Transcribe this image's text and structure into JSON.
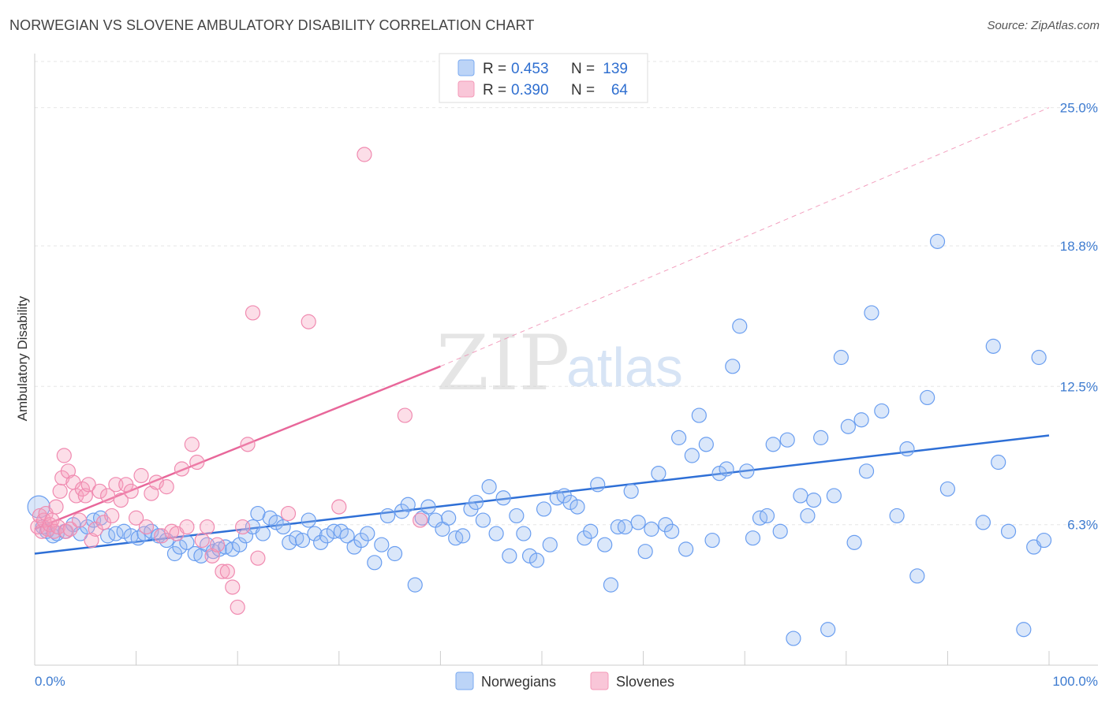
{
  "header": {
    "title": "NORWEGIAN VS SLOVENE AMBULATORY DISABILITY CORRELATION CHART",
    "source": "Source: ZipAtlas.com"
  },
  "watermark": {
    "zip": "ZIP",
    "atlas": "atlas"
  },
  "legend": {
    "norwegians": {
      "r_label": "R =",
      "r_value": "0.453",
      "n_label": "N =",
      "n_value": "139",
      "color": "#7aaaf0"
    },
    "slovenes": {
      "r_label": "R =",
      "r_value": "0.390",
      "n_label": "N =",
      "n_value": "64",
      "color": "#f49ab8"
    }
  },
  "bottom_legend": {
    "norwegians": "Norwegians",
    "slovenes": "Slovenes"
  },
  "chart_data": {
    "type": "scatter",
    "title": "NORWEGIAN VS SLOVENE AMBULATORY DISABILITY CORRELATION CHART",
    "xlabel": "",
    "ylabel": "Ambulatory Disability",
    "xlim": [
      0,
      100
    ],
    "ylim": [
      0,
      27
    ],
    "x_tick_labels": [
      "0.0%",
      "100.0%"
    ],
    "y_ticks": [
      6.3,
      12.5,
      18.8,
      25.0
    ],
    "y_tick_labels": [
      "6.3%",
      "12.5%",
      "18.8%",
      "25.0%"
    ],
    "grid": true,
    "legend_position": "top-center",
    "series": [
      {
        "name": "Norwegians",
        "color": "#6a9ef0",
        "trend": {
          "x": [
            0,
            100
          ],
          "y": [
            5.0,
            10.3
          ]
        },
        "points": [
          [
            0.4,
            7.1
          ],
          [
            0.8,
            6.2
          ],
          [
            1.2,
            6.0
          ],
          [
            1.8,
            5.8
          ],
          [
            2.2,
            5.9
          ],
          [
            3.0,
            6.0
          ],
          [
            3.8,
            6.3
          ],
          [
            4.5,
            5.9
          ],
          [
            5.2,
            6.2
          ],
          [
            5.8,
            6.5
          ],
          [
            6.5,
            6.6
          ],
          [
            7.2,
            5.8
          ],
          [
            8.0,
            5.9
          ],
          [
            8.8,
            6.0
          ],
          [
            9.5,
            5.8
          ],
          [
            10.2,
            5.7
          ],
          [
            10.8,
            5.9
          ],
          [
            11.5,
            6.0
          ],
          [
            12.2,
            5.8
          ],
          [
            13.0,
            5.6
          ],
          [
            13.8,
            5.0
          ],
          [
            14.3,
            5.3
          ],
          [
            15.0,
            5.5
          ],
          [
            15.8,
            5.0
          ],
          [
            16.4,
            4.9
          ],
          [
            17.0,
            5.4
          ],
          [
            17.6,
            5.1
          ],
          [
            18.2,
            5.2
          ],
          [
            18.8,
            5.3
          ],
          [
            19.5,
            5.2
          ],
          [
            20.2,
            5.4
          ],
          [
            20.8,
            5.8
          ],
          [
            21.5,
            6.2
          ],
          [
            22.0,
            6.8
          ],
          [
            22.5,
            5.9
          ],
          [
            23.2,
            6.6
          ],
          [
            23.8,
            6.4
          ],
          [
            24.5,
            6.2
          ],
          [
            25.1,
            5.5
          ],
          [
            25.8,
            5.7
          ],
          [
            26.4,
            5.6
          ],
          [
            27.0,
            6.5
          ],
          [
            27.6,
            5.9
          ],
          [
            28.2,
            5.5
          ],
          [
            28.8,
            5.8
          ],
          [
            29.5,
            6.0
          ],
          [
            30.2,
            6.0
          ],
          [
            30.8,
            5.8
          ],
          [
            31.5,
            5.3
          ],
          [
            32.2,
            5.6
          ],
          [
            32.8,
            5.9
          ],
          [
            33.5,
            4.6
          ],
          [
            34.2,
            5.4
          ],
          [
            34.8,
            6.7
          ],
          [
            35.5,
            5.0
          ],
          [
            36.2,
            6.9
          ],
          [
            36.8,
            7.2
          ],
          [
            37.5,
            3.6
          ],
          [
            38.2,
            6.6
          ],
          [
            38.8,
            7.1
          ],
          [
            39.5,
            6.5
          ],
          [
            40.2,
            6.1
          ],
          [
            40.8,
            6.6
          ],
          [
            41.5,
            5.7
          ],
          [
            42.2,
            5.8
          ],
          [
            43.0,
            7.0
          ],
          [
            43.5,
            7.3
          ],
          [
            44.2,
            6.5
          ],
          [
            44.8,
            8.0
          ],
          [
            45.5,
            5.9
          ],
          [
            46.2,
            7.5
          ],
          [
            46.8,
            4.9
          ],
          [
            47.5,
            6.7
          ],
          [
            48.2,
            5.9
          ],
          [
            48.8,
            4.9
          ],
          [
            49.5,
            4.7
          ],
          [
            50.2,
            7.0
          ],
          [
            50.8,
            5.4
          ],
          [
            51.5,
            7.5
          ],
          [
            52.2,
            7.6
          ],
          [
            52.8,
            7.3
          ],
          [
            53.5,
            7.1
          ],
          [
            54.2,
            5.7
          ],
          [
            54.8,
            6.0
          ],
          [
            55.5,
            8.1
          ],
          [
            56.2,
            5.4
          ],
          [
            56.8,
            3.6
          ],
          [
            57.5,
            6.2
          ],
          [
            58.2,
            6.2
          ],
          [
            58.8,
            7.8
          ],
          [
            59.5,
            6.4
          ],
          [
            60.2,
            5.1
          ],
          [
            60.8,
            6.1
          ],
          [
            61.5,
            8.6
          ],
          [
            62.2,
            6.3
          ],
          [
            62.8,
            6.0
          ],
          [
            63.5,
            10.2
          ],
          [
            64.2,
            5.2
          ],
          [
            64.8,
            9.4
          ],
          [
            65.5,
            11.2
          ],
          [
            66.2,
            9.9
          ],
          [
            66.8,
            5.6
          ],
          [
            67.5,
            8.6
          ],
          [
            68.2,
            8.8
          ],
          [
            68.8,
            13.4
          ],
          [
            69.5,
            15.2
          ],
          [
            70.2,
            8.7
          ],
          [
            70.8,
            5.7
          ],
          [
            71.5,
            6.6
          ],
          [
            72.2,
            6.7
          ],
          [
            72.8,
            9.9
          ],
          [
            73.5,
            6.0
          ],
          [
            74.2,
            10.1
          ],
          [
            74.8,
            1.2
          ],
          [
            75.5,
            7.6
          ],
          [
            76.2,
            6.7
          ],
          [
            76.8,
            7.4
          ],
          [
            77.5,
            10.2
          ],
          [
            78.2,
            1.6
          ],
          [
            78.8,
            7.6
          ],
          [
            79.5,
            13.8
          ],
          [
            80.2,
            10.7
          ],
          [
            80.8,
            5.5
          ],
          [
            81.5,
            11.0
          ],
          [
            82.0,
            8.7
          ],
          [
            82.5,
            15.8
          ],
          [
            83.5,
            11.4
          ],
          [
            85.0,
            6.7
          ],
          [
            86.0,
            9.7
          ],
          [
            87.0,
            4.0
          ],
          [
            88.0,
            12.0
          ],
          [
            89.0,
            19.0
          ],
          [
            90.0,
            7.9
          ],
          [
            93.5,
            6.4
          ],
          [
            94.5,
            14.3
          ],
          [
            95.0,
            9.1
          ],
          [
            96.0,
            6.0
          ],
          [
            97.5,
            1.6
          ],
          [
            98.5,
            5.3
          ],
          [
            99.0,
            13.8
          ],
          [
            99.5,
            5.6
          ]
        ]
      },
      {
        "name": "Slovenes",
        "color": "#f08ab0",
        "trend": {
          "x": [
            0,
            40
          ],
          "y": [
            6.1,
            13.4
          ]
        },
        "trend_extended": {
          "x": [
            40,
            100
          ],
          "y": [
            13.4,
            25.0
          ]
        },
        "points": [
          [
            0.3,
            6.2
          ],
          [
            0.5,
            6.7
          ],
          [
            0.7,
            6.0
          ],
          [
            0.9,
            6.5
          ],
          [
            1.1,
            6.8
          ],
          [
            1.3,
            6.1
          ],
          [
            1.5,
            6.3
          ],
          [
            1.7,
            6.5
          ],
          [
            1.9,
            6.0
          ],
          [
            2.1,
            7.1
          ],
          [
            2.3,
            6.2
          ],
          [
            2.5,
            7.8
          ],
          [
            2.7,
            8.4
          ],
          [
            2.9,
            9.4
          ],
          [
            3.1,
            6.0
          ],
          [
            3.3,
            8.7
          ],
          [
            3.5,
            6.1
          ],
          [
            3.8,
            8.2
          ],
          [
            4.1,
            7.6
          ],
          [
            4.4,
            6.5
          ],
          [
            4.7,
            7.9
          ],
          [
            5.0,
            7.6
          ],
          [
            5.3,
            8.1
          ],
          [
            5.6,
            5.6
          ],
          [
            6.0,
            6.1
          ],
          [
            6.4,
            7.8
          ],
          [
            6.8,
            6.4
          ],
          [
            7.2,
            7.6
          ],
          [
            7.6,
            6.7
          ],
          [
            8.0,
            8.1
          ],
          [
            8.5,
            7.4
          ],
          [
            9.0,
            8.1
          ],
          [
            9.5,
            7.8
          ],
          [
            10.0,
            6.6
          ],
          [
            10.5,
            8.5
          ],
          [
            11.0,
            6.2
          ],
          [
            11.5,
            7.7
          ],
          [
            12.0,
            8.2
          ],
          [
            12.5,
            5.8
          ],
          [
            13.0,
            8.0
          ],
          [
            13.5,
            6.0
          ],
          [
            14.0,
            5.9
          ],
          [
            14.5,
            8.8
          ],
          [
            15.0,
            6.2
          ],
          [
            15.5,
            9.9
          ],
          [
            16.0,
            9.1
          ],
          [
            16.5,
            5.6
          ],
          [
            17.0,
            6.2
          ],
          [
            17.5,
            4.9
          ],
          [
            18.0,
            5.4
          ],
          [
            18.5,
            4.2
          ],
          [
            19.0,
            4.2
          ],
          [
            19.5,
            3.5
          ],
          [
            20.0,
            2.6
          ],
          [
            20.5,
            6.2
          ],
          [
            21.0,
            9.9
          ],
          [
            21.5,
            15.8
          ],
          [
            22.0,
            4.8
          ],
          [
            25.0,
            6.8
          ],
          [
            27.0,
            15.4
          ],
          [
            30.0,
            7.1
          ],
          [
            32.5,
            22.9
          ],
          [
            36.5,
            11.2
          ],
          [
            38.0,
            6.5
          ]
        ]
      }
    ]
  }
}
